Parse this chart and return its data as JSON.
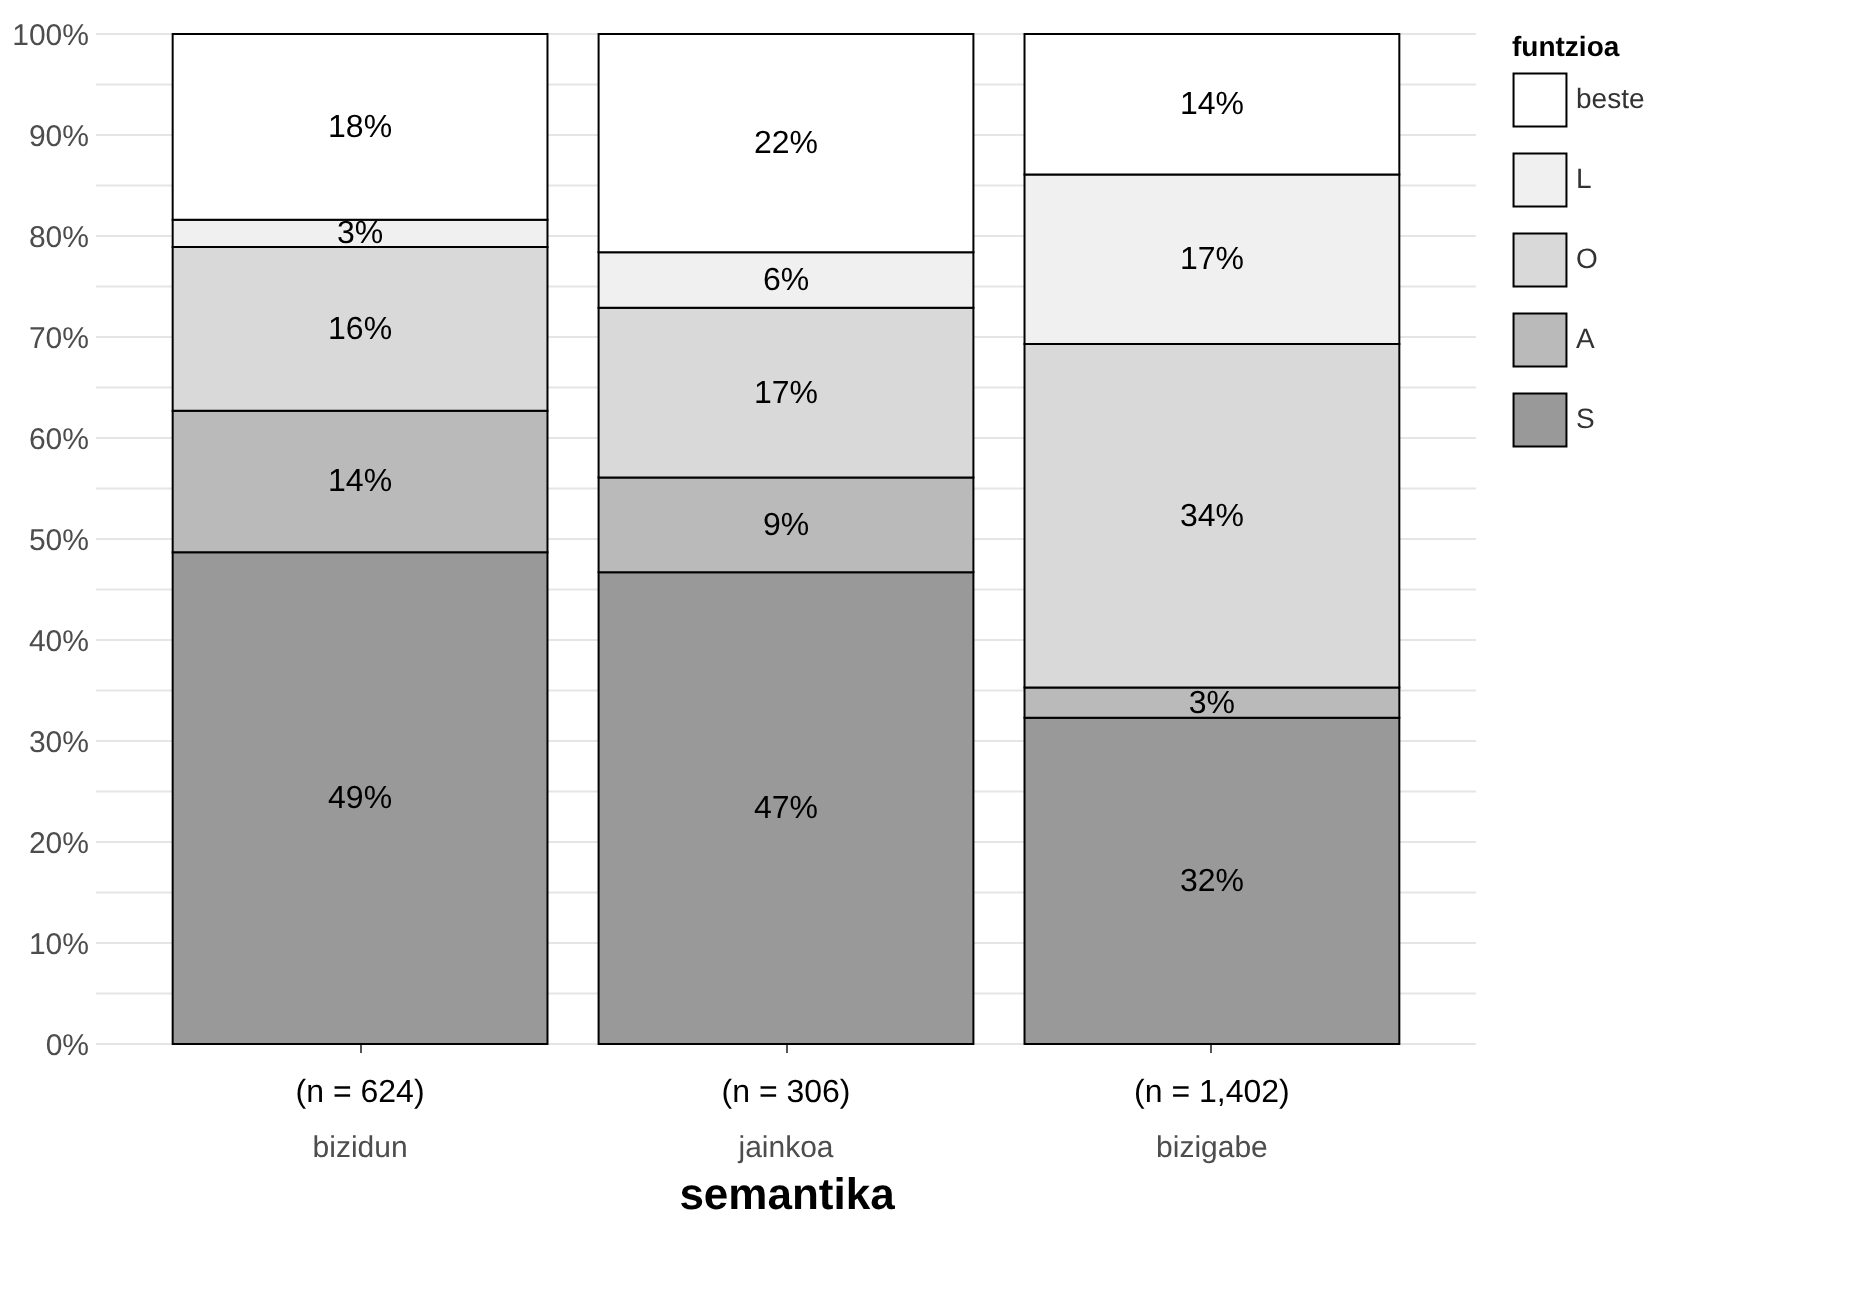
{
  "chart_data": {
    "type": "bar",
    "stacked": true,
    "xlabel": "semantika",
    "legend_title": "funtzioa",
    "legend": "right",
    "grid": "y",
    "categories": [
      "bizidun",
      "jainkoa",
      "bizigabe"
    ],
    "ylim": [
      0,
      100
    ],
    "yticks": [
      {
        "value": 0,
        "label": "0%"
      },
      {
        "value": 5,
        "label": null
      },
      {
        "value": 10,
        "label": "10%"
      },
      {
        "value": 15,
        "label": null
      },
      {
        "value": 20,
        "label": "20%"
      },
      {
        "value": 25,
        "label": null
      },
      {
        "value": 30,
        "label": "30%"
      },
      {
        "value": 35,
        "label": null
      },
      {
        "value": 40,
        "label": "40%"
      },
      {
        "value": 45,
        "label": null
      },
      {
        "value": 50,
        "label": "50%"
      },
      {
        "value": 55,
        "label": null
      },
      {
        "value": 60,
        "label": "60%"
      },
      {
        "value": 65,
        "label": null
      },
      {
        "value": 70,
        "label": "70%"
      },
      {
        "value": 75,
        "label": null
      },
      {
        "value": 80,
        "label": "80%"
      },
      {
        "value": 85,
        "label": null
      },
      {
        "value": 90,
        "label": "90%"
      },
      {
        "value": 95,
        "label": null
      },
      {
        "value": 100,
        "label": "100%"
      }
    ],
    "series": [
      {
        "name": "S",
        "color": "#999999",
        "values": [
          48.7,
          46.7,
          32.3
        ],
        "value_labels": [
          "49%",
          "47%",
          "32%"
        ]
      },
      {
        "name": "A",
        "color": "#bababa",
        "values": [
          14.0,
          9.4,
          3.0
        ],
        "value_labels": [
          "14%",
          "9%",
          "3%"
        ]
      },
      {
        "name": "O",
        "color": "#d9d9d9",
        "values": [
          16.2,
          16.8,
          34.0
        ],
        "value_labels": [
          "16%",
          "17%",
          "34%"
        ]
      },
      {
        "name": "L",
        "color": "#f0f0f0",
        "values": [
          2.7,
          5.5,
          16.8
        ],
        "value_labels": [
          "3%",
          "6%",
          "17%"
        ]
      },
      {
        "name": "beste",
        "color": "#ffffff",
        "values": [
          18.4,
          21.6,
          13.9
        ],
        "value_labels": [
          "18%",
          "22%",
          "14%"
        ]
      }
    ],
    "annotations": [
      {
        "text": "(n = 624)",
        "x": "bizidun"
      },
      {
        "text": "(n = 306)",
        "x": "jainkoa"
      },
      {
        "text": "(n = 1,402)",
        "x": "bizigabe"
      }
    ]
  }
}
